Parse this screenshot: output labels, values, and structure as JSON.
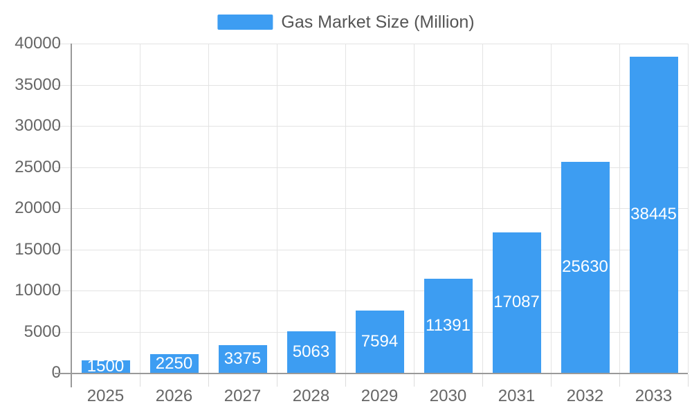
{
  "legend": {
    "label": "Gas Market Size (Million)"
  },
  "colors": {
    "bar": "#3D9DF2",
    "axis_line": "#999999",
    "grid_line": "#E3E3E3",
    "tick_line": "#DCDCDC",
    "axis_text": "#666666",
    "legend_text": "#555555",
    "value_text": "#FFFFFF",
    "background": "#FFFFFF"
  },
  "chart_data": {
    "type": "bar",
    "title": "Gas Market Size (Million)",
    "series_name": "Gas Market Size (Million)",
    "categories": [
      "2025",
      "2026",
      "2027",
      "2028",
      "2029",
      "2030",
      "2031",
      "2032",
      "2033"
    ],
    "values": [
      1500,
      2250,
      3375,
      5063,
      7594,
      11391,
      17087,
      25630,
      38445
    ],
    "xlabel": "",
    "ylabel": "",
    "ylim": [
      0,
      40000
    ],
    "y_tick_step": 5000,
    "y_ticks": [
      0,
      5000,
      10000,
      15000,
      20000,
      25000,
      30000,
      35000,
      40000
    ],
    "grid": true,
    "grid_vertical": true,
    "legend_position": "top-center",
    "value_labels": "inside-center",
    "bar_color": "#3D9DF2"
  }
}
